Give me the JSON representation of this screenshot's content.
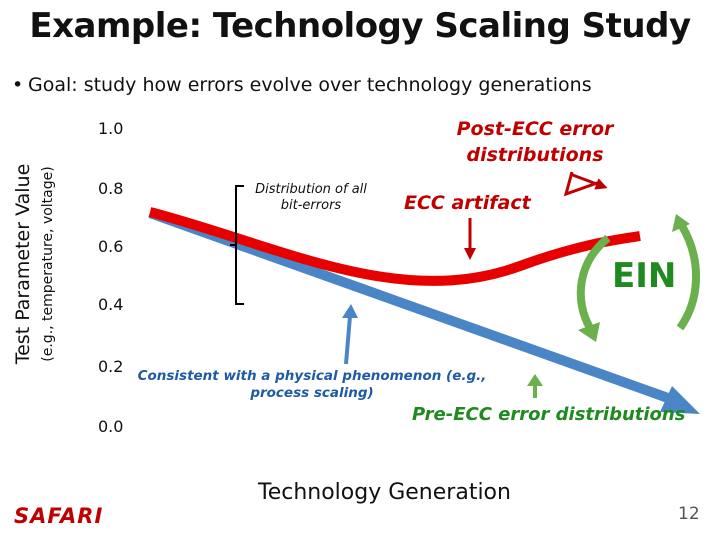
{
  "title": "Example: Technology Scaling Study",
  "bullet": "Goal: study how errors evolve over technology generations",
  "y_axis": {
    "label": "Test Parameter Value",
    "sublabel": "(e.g., temperature, voltage)",
    "ticks": [
      "1.0",
      "0.8",
      "0.6",
      "0.4",
      "0.2",
      "0.0"
    ]
  },
  "x_axis": {
    "label": "Technology Generation"
  },
  "annotations": {
    "distribution": "Distribution of all bit-errors",
    "post_ecc": "Post-ECC error distributions",
    "ecc_artifact": "ECC artifact",
    "ein": "EIN",
    "consistent": "Consistent with a physical phenomenon (e.g., process scaling)",
    "pre_ecc": "Pre-ECC error distributions"
  },
  "footer": {
    "logo": "SAFARI",
    "page_number": "12"
  },
  "colors": {
    "red": "#e60000",
    "blue": "#4a86c5",
    "green": "#6ab04c",
    "dark_red": "#c00000"
  }
}
